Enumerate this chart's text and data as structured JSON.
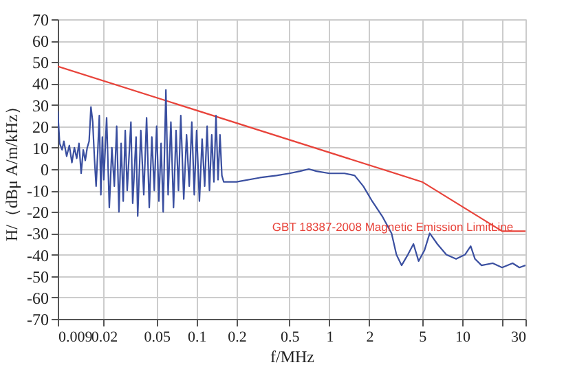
{
  "chart_data": {
    "type": "line",
    "xlabel": "f/MHz",
    "ylabel": "H/（dBμ A/m/kHz）",
    "log": "x",
    "grid": true,
    "marker": "none",
    "line_style": "solid",
    "xlim": [
      0.009,
      30
    ],
    "ylim": [
      -70,
      70
    ],
    "xticks": [
      0.009,
      0.02,
      0.05,
      0.1,
      0.2,
      0.5,
      1,
      2,
      5,
      10,
      {
        "value": 20,
        "label": null
      },
      30
    ],
    "yticks": [
      -70,
      -60,
      -50,
      -40,
      -30,
      -20,
      -10,
      0,
      10,
      20,
      30,
      40,
      50,
      60,
      70
    ],
    "annotations": [
      {
        "text": "GBT 18387-2008  Magnetic Emission LimitLine",
        "x": 3,
        "y": -27
      }
    ],
    "series": [
      {
        "color": "#e8433a",
        "x": [
          0.009,
          5,
          20,
          30
        ],
        "values": [
          48,
          -6,
          -29,
          -29
        ]
      },
      {
        "color": "#3a4fa0",
        "x": [
          0.009,
          0.0093,
          0.0097,
          0.01,
          0.0105,
          0.011,
          0.0115,
          0.012,
          0.0125,
          0.013,
          0.0135,
          0.014,
          0.0145,
          0.015,
          0.0155,
          0.016,
          0.0165,
          0.017,
          0.0175,
          0.018,
          0.0185,
          0.019,
          0.0195,
          0.02,
          0.021,
          0.022,
          0.023,
          0.024,
          0.025,
          0.026,
          0.027,
          0.028,
          0.029,
          0.03,
          0.032,
          0.033,
          0.035,
          0.036,
          0.038,
          0.04,
          0.042,
          0.044,
          0.046,
          0.048,
          0.05,
          0.052,
          0.054,
          0.056,
          0.0587,
          0.061,
          0.064,
          0.067,
          0.07,
          0.073,
          0.076,
          0.08,
          0.084,
          0.088,
          0.092,
          0.096,
          0.1,
          0.105,
          0.11,
          0.115,
          0.12,
          0.125,
          0.13,
          0.135,
          0.14,
          0.145,
          0.15,
          0.155,
          0.16,
          0.2,
          0.3,
          0.4,
          0.5,
          0.6,
          0.7,
          0.8,
          1.0,
          1.3,
          1.55,
          1.8,
          2.1,
          2.5,
          2.94,
          3.2,
          3.5,
          3.9,
          4.3,
          4.7,
          5.2,
          5.7,
          6.5,
          7.6,
          9,
          10.5,
          11.6,
          12.5,
          14,
          17,
          20,
          24,
          27,
          30
        ],
        "values": [
          27,
          12,
          9,
          13,
          6,
          11,
          3,
          10,
          5,
          12,
          -2,
          9,
          4,
          10,
          13,
          29,
          22,
          5,
          -8,
          8,
          25,
          -12,
          15,
          -5,
          24,
          -18,
          10,
          -8,
          20,
          -20,
          12,
          -15,
          18,
          -10,
          22,
          -16,
          15,
          -22,
          18,
          -12,
          24,
          -18,
          15,
          -10,
          20,
          -15,
          12,
          -20,
          37,
          -12,
          22,
          -18,
          18,
          -10,
          25,
          -14,
          16,
          -8,
          22,
          -12,
          18,
          -15,
          14,
          -8,
          20,
          -10,
          16,
          -6,
          25,
          -5,
          16,
          -3,
          -6,
          -6,
          -4,
          -3,
          -2,
          -1,
          0,
          -1,
          -2,
          -2,
          -3,
          -8,
          -15,
          -22,
          -30,
          -40,
          -45,
          -40,
          -35,
          -43,
          -38,
          -30,
          -35,
          -40,
          -42,
          -40,
          -36,
          -42,
          -45,
          -44,
          -46,
          -44,
          -46,
          -45
        ]
      }
    ]
  }
}
